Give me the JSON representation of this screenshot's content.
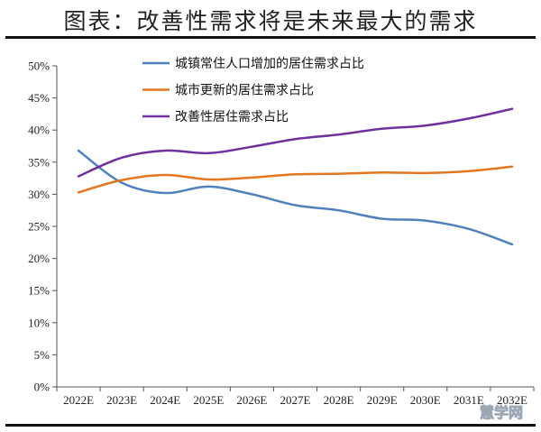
{
  "title": "图表：改善性需求将是未来最大的需求",
  "watermark": "慧学网",
  "chart_data": {
    "type": "line",
    "categories": [
      "2022E",
      "2023E",
      "2024E",
      "2025E",
      "2026E",
      "2027E",
      "2028E",
      "2029E",
      "2030E",
      "2031E",
      "2032E"
    ],
    "ylim": [
      0,
      50
    ],
    "yticks": [
      0,
      5,
      10,
      15,
      20,
      25,
      30,
      35,
      40,
      45,
      50
    ],
    "ytick_labels": [
      "0%",
      "5%",
      "10%",
      "15%",
      "20%",
      "25%",
      "30%",
      "35%",
      "40%",
      "45%",
      "50%"
    ],
    "y_unit": "%",
    "grid": false,
    "legend_position": "top-center",
    "series": [
      {
        "name": "城镇常住人口增加的居住需求占比",
        "color": "#4f81bd",
        "values": [
          36.8,
          31.8,
          30.2,
          31.2,
          30.0,
          28.3,
          27.5,
          26.2,
          25.9,
          24.6,
          22.2
        ]
      },
      {
        "name": "城市更新的居住需求占比",
        "color": "#e3761f",
        "values": [
          30.3,
          32.2,
          33.0,
          32.3,
          32.6,
          33.1,
          33.2,
          33.4,
          33.3,
          33.6,
          34.3
        ]
      },
      {
        "name": "改善性居住需求占比",
        "color": "#7030a0",
        "values": [
          32.8,
          35.7,
          36.8,
          36.4,
          37.4,
          38.6,
          39.3,
          40.2,
          40.7,
          41.8,
          43.3
        ]
      }
    ]
  }
}
